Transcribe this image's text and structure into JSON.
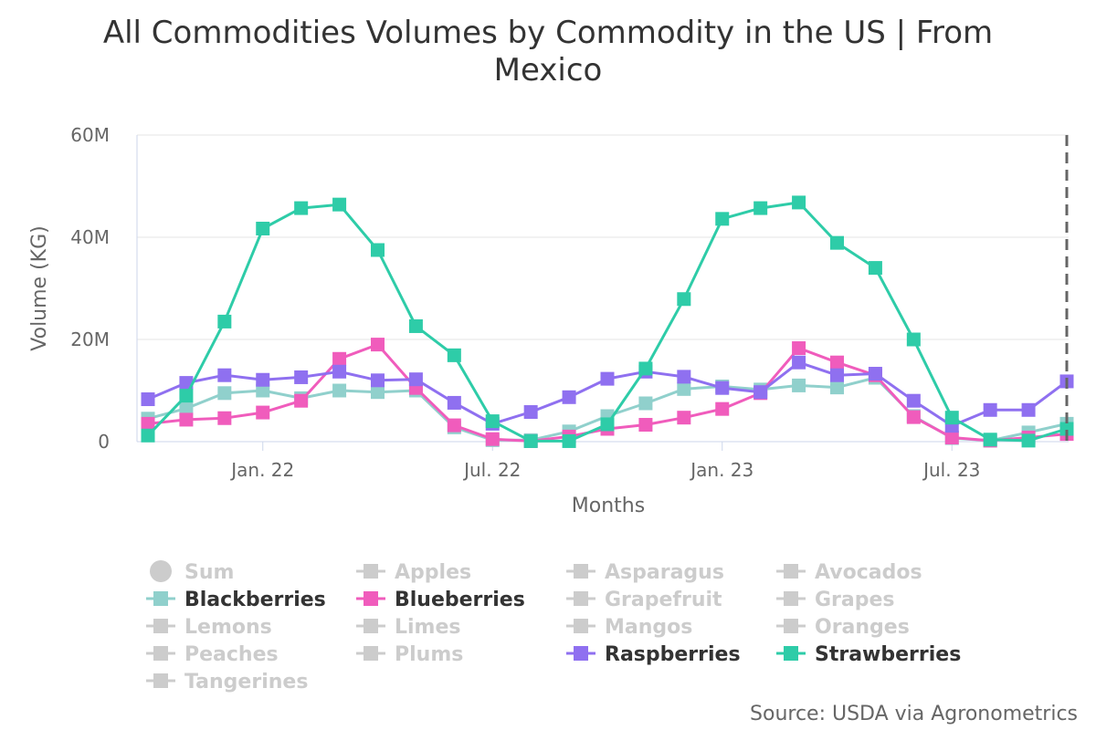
{
  "chart_data": {
    "type": "line",
    "title": "All Commodities Volumes by Commodity in the US | From Mexico",
    "title_lines": [
      "All Commodities Volumes by Commodity in the US | From",
      "Mexico"
    ],
    "xlabel": "Months",
    "ylabel": "Volume (KG)",
    "ylim": [
      0,
      60000000
    ],
    "y_ticks": [
      {
        "value": 0,
        "label": "0"
      },
      {
        "value": 20000000,
        "label": "20M"
      },
      {
        "value": 40000000,
        "label": "40M"
      },
      {
        "value": 60000000,
        "label": "60M"
      }
    ],
    "x_ticks": [
      {
        "index": 3,
        "label": "Jan. 22"
      },
      {
        "index": 9,
        "label": "Jul. 22"
      },
      {
        "index": 15,
        "label": "Jan. 23"
      },
      {
        "index": 21,
        "label": "Jul. 23"
      }
    ],
    "x_count": 25,
    "x_periods": [
      "Oct 21",
      "Nov 21",
      "Dec 21",
      "Jan 22",
      "Feb 22",
      "Mar 22",
      "Apr 22",
      "May 22",
      "Jun 22",
      "Jul 22",
      "Aug 22",
      "Sep 22",
      "Oct 22",
      "Nov 22",
      "Dec 22",
      "Jan 23",
      "Feb 23",
      "Mar 23",
      "Apr 23",
      "May 23",
      "Jun 23",
      "Jul 23",
      "Aug 23",
      "Sep 23",
      "Oct 23"
    ],
    "series": [
      {
        "name": "Blackberries",
        "color": "#90d0cc",
        "values": [
          4.5,
          6.5,
          9.5,
          10.0,
          8.5,
          10.0,
          9.7,
          10.0,
          2.8,
          0.3,
          0.3,
          2.0,
          5.0,
          7.5,
          10.3,
          10.8,
          10.2,
          11.0,
          10.6,
          12.5,
          5.0,
          0.7,
          0.2,
          1.8,
          3.5
        ]
      },
      {
        "name": "Blueberries",
        "color": "#f05cbc",
        "values": [
          3.5,
          4.3,
          4.6,
          5.7,
          8.0,
          16.2,
          19.0,
          10.5,
          3.2,
          0.5,
          0.1,
          1.0,
          2.5,
          3.3,
          4.7,
          6.4,
          9.5,
          18.3,
          15.5,
          13.0,
          4.8,
          0.8,
          0.2,
          0.8,
          1.5
        ]
      },
      {
        "name": "Raspberries",
        "color": "#8f70f0",
        "values": [
          8.3,
          11.5,
          13.0,
          12.1,
          12.6,
          13.7,
          12.0,
          12.2,
          7.6,
          3.5,
          5.8,
          8.7,
          12.3,
          13.7,
          12.7,
          10.5,
          9.7,
          15.5,
          13.0,
          13.3,
          8.0,
          3.1,
          6.2,
          6.2,
          11.8
        ]
      },
      {
        "name": "Strawberries",
        "color": "#2ecca8",
        "values": [
          1.2,
          9.0,
          23.5,
          41.7,
          45.7,
          46.4,
          37.5,
          22.6,
          16.9,
          4.0,
          0.1,
          0.1,
          3.4,
          14.3,
          27.9,
          43.6,
          45.7,
          46.8,
          38.9,
          34.0,
          20.0,
          4.7,
          0.4,
          0.2,
          2.5
        ]
      }
    ],
    "value_scale": "millions of KG",
    "current_marker_index": 24,
    "legend": [
      {
        "name": "Sum",
        "active": false,
        "shape": "circle"
      },
      {
        "name": "Apples",
        "active": false,
        "shape": "line"
      },
      {
        "name": "Asparagus",
        "active": false,
        "shape": "line"
      },
      {
        "name": "Avocados",
        "active": false,
        "shape": "line"
      },
      {
        "name": "Blackberries",
        "active": true,
        "shape": "line",
        "color": "#90d0cc"
      },
      {
        "name": "Blueberries",
        "active": true,
        "shape": "line",
        "color": "#f05cbc"
      },
      {
        "name": "Grapefruit",
        "active": false,
        "shape": "line"
      },
      {
        "name": "Grapes",
        "active": false,
        "shape": "line"
      },
      {
        "name": "Lemons",
        "active": false,
        "shape": "line"
      },
      {
        "name": "Limes",
        "active": false,
        "shape": "line"
      },
      {
        "name": "Mangos",
        "active": false,
        "shape": "line"
      },
      {
        "name": "Oranges",
        "active": false,
        "shape": "line"
      },
      {
        "name": "Peaches",
        "active": false,
        "shape": "line"
      },
      {
        "name": "Plums",
        "active": false,
        "shape": "line"
      },
      {
        "name": "Raspberries",
        "active": true,
        "shape": "line",
        "color": "#8f70f0"
      },
      {
        "name": "Strawberries",
        "active": true,
        "shape": "line",
        "color": "#2ecca8"
      },
      {
        "name": "Tangerines",
        "active": false,
        "shape": "line"
      }
    ],
    "source": "Source: USDA via Agronometrics"
  },
  "colors": {
    "inactive": "#cccccc",
    "active_text": "#333333",
    "grid": "#e6e6e6",
    "axis": "#ccd6eb",
    "marker_line": "#666666"
  }
}
